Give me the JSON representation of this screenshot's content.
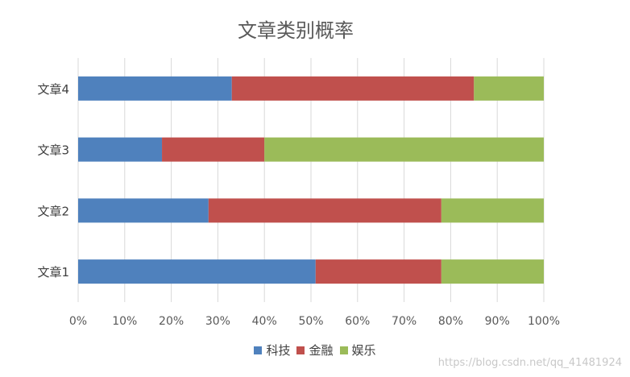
{
  "chart_data": {
    "type": "bar",
    "orientation": "horizontal",
    "stacked": "100%",
    "title": "文章类别概率",
    "categories": [
      "文章1",
      "文章2",
      "文章3",
      "文章4"
    ],
    "series": [
      {
        "name": "科技",
        "color": "#4f81bd",
        "values": [
          0.51,
          0.28,
          0.18,
          0.33
        ]
      },
      {
        "name": "金融",
        "color": "#c0504d",
        "values": [
          0.27,
          0.5,
          0.22,
          0.52
        ]
      },
      {
        "name": "娱乐",
        "color": "#9bbb59",
        "values": [
          0.22,
          0.22,
          0.6,
          0.15
        ]
      }
    ],
    "xlim": [
      0,
      1
    ],
    "x_ticks": [
      "0%",
      "10%",
      "20%",
      "30%",
      "40%",
      "50%",
      "60%",
      "70%",
      "80%",
      "90%",
      "100%"
    ],
    "grid": true,
    "legend_position": "bottom"
  },
  "watermark": "https://blog.csdn.net/qq_41481924"
}
